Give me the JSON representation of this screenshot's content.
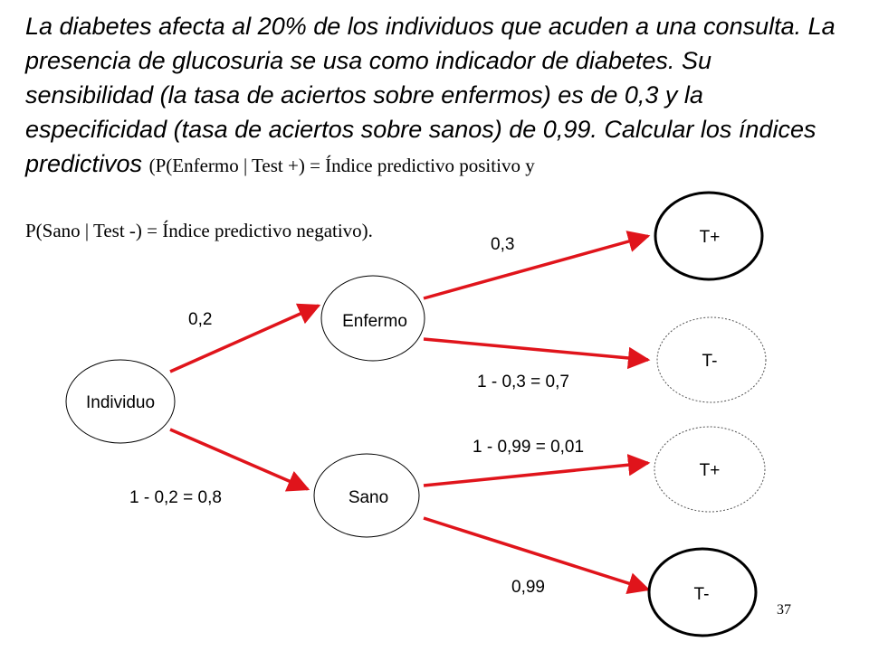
{
  "problem": {
    "italic_text": "La diabetes afecta al 20% de los individuos que acuden a una consulta. La presencia de glucosuria se usa como indicador de diabetes. Su sensibilidad (la tasa de aciertos sobre enfermos) es de 0,3 y la especificidad (tasa de aciertos sobre sanos) de 0,99. Calcular los índices predictivos",
    "serif_text_1": "(P(Enfermo | Test +) = Índice predictivo positivo y",
    "serif_text_2": "P(Sano | Test -) = Índice predictivo negativo)."
  },
  "tree": {
    "nodes": {
      "individuo": "Individuo",
      "enfermo": "Enfermo",
      "sano": "Sano",
      "tpos_enfermo": "T+",
      "tneg_enfermo": "T-",
      "tpos_sano": "T+",
      "tneg_sano": "T-"
    },
    "edges": {
      "individuo_enfermo": "0,2",
      "individuo_sano": "1 - 0,2 = 0,8",
      "enfermo_tpos": "0,3",
      "enfermo_tneg": "1 - 0,3 = 0,7",
      "sano_tpos": "1 - 0,99 = 0,01",
      "sano_tneg": "0,99"
    }
  },
  "colors": {
    "edge": "#e0141b",
    "node_stroke": "#000000"
  },
  "page_number": "37"
}
